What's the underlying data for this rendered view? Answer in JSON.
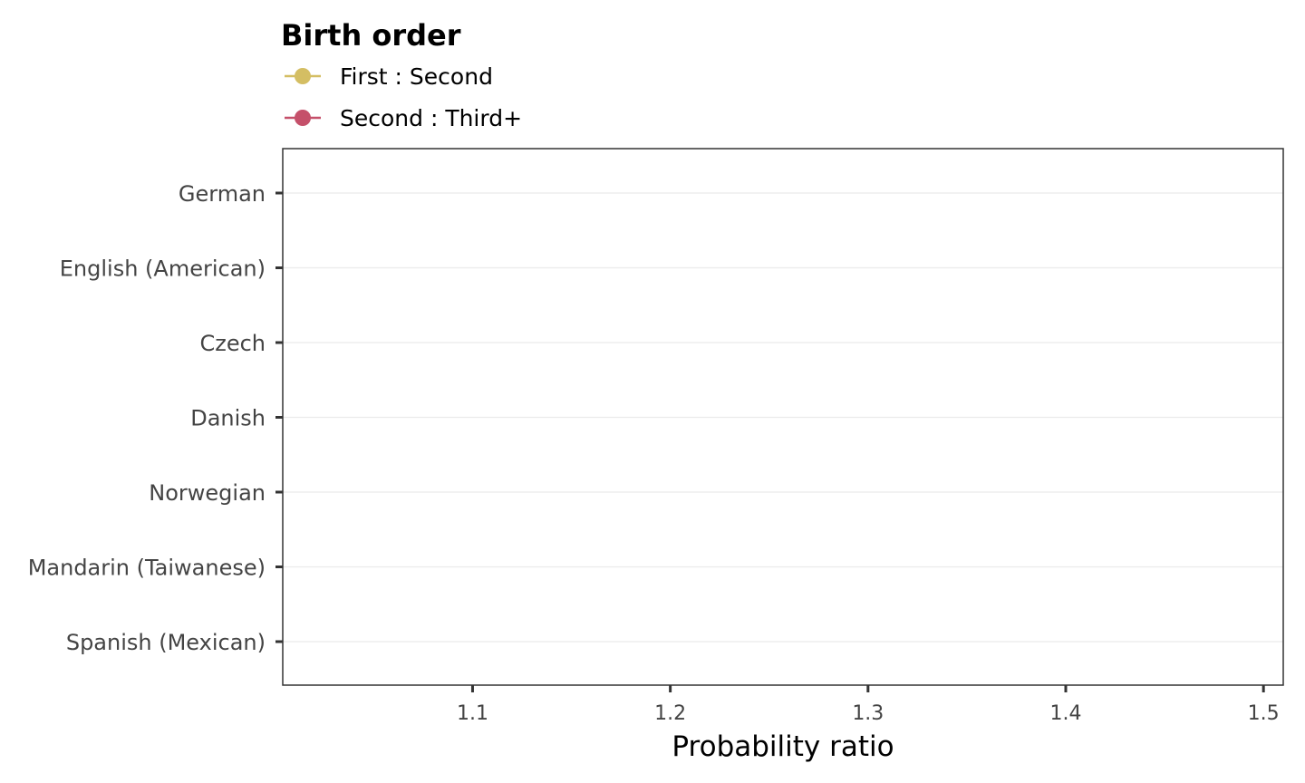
{
  "chart_data": {
    "type": "scatter",
    "title": "",
    "xlabel": "Probability ratio",
    "ylabel": "",
    "xlim": [
      1.004,
      1.51
    ],
    "x_ticks": [
      "1.1",
      "1.2",
      "1.3",
      "1.4",
      "1.5"
    ],
    "x_tick_values": [
      1.1,
      1.2,
      1.3,
      1.4,
      1.5
    ],
    "categories": [
      "German",
      "English (American)",
      "Czech",
      "Danish",
      "Norwegian",
      "Mandarin (Taiwanese)",
      "Spanish (Mexican)"
    ],
    "grid": "horizontal-major",
    "legend": {
      "title": "Birth order",
      "placement": "top-left",
      "entries": [
        {
          "name": "First : Second",
          "color": "#D4BE63"
        },
        {
          "name": "Second : Third+",
          "color": "#C5506A"
        }
      ]
    },
    "series": [
      {
        "name": "First : Second",
        "color": "#D4BE63",
        "values": []
      },
      {
        "name": "Second : Third+",
        "color": "#C5506A",
        "values": []
      }
    ]
  }
}
